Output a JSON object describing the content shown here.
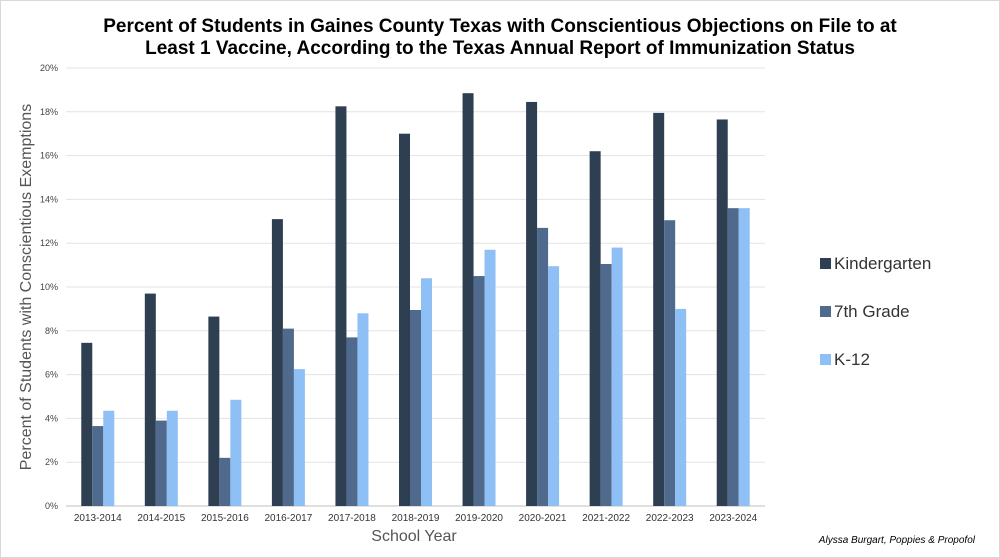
{
  "chart_data": {
    "type": "bar",
    "title": "Percent of Students in Gaines County Texas with Conscientious Objections on File to at\nLeast 1 Vaccine, According to the Texas Annual Report of Immunization Status",
    "xlabel": "School Year",
    "ylabel": "Percent of Students with Conscientious Exemptions",
    "ylim": [
      0,
      20
    ],
    "yticks": [
      "0%",
      "2%",
      "4%",
      "6%",
      "8%",
      "10%",
      "12%",
      "14%",
      "16%",
      "18%",
      "20%"
    ],
    "grid": true,
    "legend_position": "right",
    "categories": [
      "2013-2014",
      "2014-2015",
      "2015-2016",
      "2016-2017",
      "2017-2018",
      "2018-2019",
      "2019-2020",
      "2020-2021",
      "2021-2022",
      "2022-2023",
      "2023-2024"
    ],
    "series": [
      {
        "name": "Kindergarten",
        "color": "#2e3f52",
        "values": [
          7.45,
          9.7,
          8.65,
          13.1,
          18.25,
          17.0,
          18.85,
          18.45,
          16.2,
          17.95,
          17.65
        ]
      },
      {
        "name": "7th Grade",
        "color": "#4f6a8d",
        "values": [
          3.65,
          3.9,
          2.2,
          8.1,
          7.7,
          8.95,
          10.5,
          12.7,
          11.05,
          13.05,
          13.6
        ]
      },
      {
        "name": "K-12",
        "color": "#8fc0f5",
        "values": [
          4.35,
          4.35,
          4.85,
          6.25,
          8.8,
          10.4,
          11.7,
          10.95,
          11.8,
          9.0,
          13.6
        ]
      }
    ],
    "annotation": "Alyssa Burgart, Poppies & Propofol"
  }
}
